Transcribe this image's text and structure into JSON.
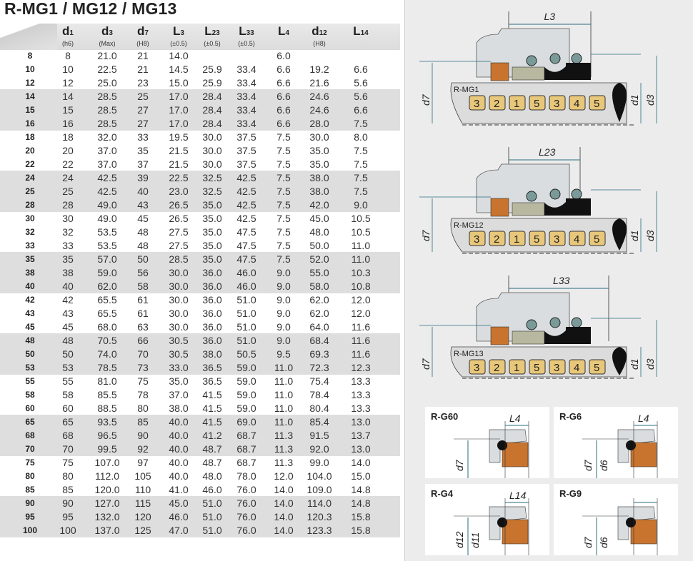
{
  "title": "R-MG1 / MG12 / MG13",
  "columns": [
    {
      "main": "d",
      "sub": "1",
      "tol": "(h6)"
    },
    {
      "main": "d",
      "sub": "3",
      "tol": "(Max)"
    },
    {
      "main": "d",
      "sub": "7",
      "tol": "(H8)"
    },
    {
      "main": "L",
      "sub": "3",
      "tol": "(±0.5)"
    },
    {
      "main": "L",
      "sub": "23",
      "tol": "(±0.5)"
    },
    {
      "main": "L",
      "sub": "33",
      "tol": "(±0.5)"
    },
    {
      "main": "L",
      "sub": "4",
      "tol": ""
    },
    {
      "main": "d",
      "sub": "12",
      "tol": "(H8)"
    },
    {
      "main": "L",
      "sub": "14",
      "tol": ""
    }
  ],
  "rows": [
    [
      "8",
      "8",
      "21.0",
      "21",
      "14.0",
      "",
      "",
      "6.0",
      "",
      ""
    ],
    [
      "10",
      "10",
      "22.5",
      "21",
      "14.5",
      "25.9",
      "33.4",
      "6.6",
      "19.2",
      "6.6"
    ],
    [
      "12",
      "12",
      "25.0",
      "23",
      "15.0",
      "25.9",
      "33.4",
      "6.6",
      "21.6",
      "5.6"
    ],
    [
      "14",
      "14",
      "28.5",
      "25",
      "17.0",
      "28.4",
      "33.4",
      "6.6",
      "24.6",
      "5.6"
    ],
    [
      "15",
      "15",
      "28.5",
      "27",
      "17.0",
      "28.4",
      "33.4",
      "6.6",
      "24.6",
      "6.6"
    ],
    [
      "16",
      "16",
      "28.5",
      "27",
      "17.0",
      "28.4",
      "33.4",
      "6.6",
      "28.0",
      "7.5"
    ],
    [
      "18",
      "18",
      "32.0",
      "33",
      "19.5",
      "30.0",
      "37.5",
      "7.5",
      "30.0",
      "8.0"
    ],
    [
      "20",
      "20",
      "37.0",
      "35",
      "21.5",
      "30.0",
      "37.5",
      "7.5",
      "35.0",
      "7.5"
    ],
    [
      "22",
      "22",
      "37.0",
      "37",
      "21.5",
      "30.0",
      "37.5",
      "7.5",
      "35.0",
      "7.5"
    ],
    [
      "24",
      "24",
      "42.5",
      "39",
      "22.5",
      "32.5",
      "42.5",
      "7.5",
      "38.0",
      "7.5"
    ],
    [
      "25",
      "25",
      "42.5",
      "40",
      "23.0",
      "32.5",
      "42.5",
      "7.5",
      "38.0",
      "7.5"
    ],
    [
      "28",
      "28",
      "49.0",
      "43",
      "26.5",
      "35.0",
      "42.5",
      "7.5",
      "42.0",
      "9.0"
    ],
    [
      "30",
      "30",
      "49.0",
      "45",
      "26.5",
      "35.0",
      "42.5",
      "7.5",
      "45.0",
      "10.5"
    ],
    [
      "32",
      "32",
      "53.5",
      "48",
      "27.5",
      "35.0",
      "47.5",
      "7.5",
      "48.0",
      "10.5"
    ],
    [
      "33",
      "33",
      "53.5",
      "48",
      "27.5",
      "35.0",
      "47.5",
      "7.5",
      "50.0",
      "11.0"
    ],
    [
      "35",
      "35",
      "57.0",
      "50",
      "28.5",
      "35.0",
      "47.5",
      "7.5",
      "52.0",
      "11.0"
    ],
    [
      "38",
      "38",
      "59.0",
      "56",
      "30.0",
      "36.0",
      "46.0",
      "9.0",
      "55.0",
      "10.3"
    ],
    [
      "40",
      "40",
      "62.0",
      "58",
      "30.0",
      "36.0",
      "46.0",
      "9.0",
      "58.0",
      "10.8"
    ],
    [
      "42",
      "42",
      "65.5",
      "61",
      "30.0",
      "36.0",
      "51.0",
      "9.0",
      "62.0",
      "12.0"
    ],
    [
      "43",
      "43",
      "65.5",
      "61",
      "30.0",
      "36.0",
      "51.0",
      "9.0",
      "62.0",
      "12.0"
    ],
    [
      "45",
      "45",
      "68.0",
      "63",
      "30.0",
      "36.0",
      "51.0",
      "9.0",
      "64.0",
      "11.6"
    ],
    [
      "48",
      "48",
      "70.5",
      "66",
      "30.5",
      "36.0",
      "51.0",
      "9.0",
      "68.4",
      "11.6"
    ],
    [
      "50",
      "50",
      "74.0",
      "70",
      "30.5",
      "38.0",
      "50.5",
      "9.5",
      "69.3",
      "11.6"
    ],
    [
      "53",
      "53",
      "78.5",
      "73",
      "33.0",
      "36.5",
      "59.0",
      "11.0",
      "72.3",
      "12.3"
    ],
    [
      "55",
      "55",
      "81.0",
      "75",
      "35.0",
      "36.5",
      "59.0",
      "11.0",
      "75.4",
      "13.3"
    ],
    [
      "58",
      "58",
      "85.5",
      "78",
      "37.0",
      "41.5",
      "59.0",
      "11.0",
      "78.4",
      "13.3"
    ],
    [
      "60",
      "60",
      "88.5",
      "80",
      "38.0",
      "41.5",
      "59.0",
      "11.0",
      "80.4",
      "13.3"
    ],
    [
      "65",
      "65",
      "93.5",
      "85",
      "40.0",
      "41.5",
      "69.0",
      "11.0",
      "85.4",
      "13.0"
    ],
    [
      "68",
      "68",
      "96.5",
      "90",
      "40.0",
      "41.2",
      "68.7",
      "11.3",
      "91.5",
      "13.7"
    ],
    [
      "70",
      "70",
      "99.5",
      "92",
      "40.0",
      "48.7",
      "68.7",
      "11.3",
      "92.0",
      "13.0"
    ],
    [
      "75",
      "75",
      "107.0",
      "97",
      "40.0",
      "48.7",
      "68.7",
      "11.3",
      "99.0",
      "14.0"
    ],
    [
      "80",
      "80",
      "112.0",
      "105",
      "40.0",
      "48.0",
      "78.0",
      "12.0",
      "104.0",
      "15.0"
    ],
    [
      "85",
      "85",
      "120.0",
      "110",
      "41.0",
      "46.0",
      "76.0",
      "14.0",
      "109.0",
      "14.8"
    ],
    [
      "90",
      "90",
      "127.0",
      "115",
      "45.0",
      "51.0",
      "76.0",
      "14.0",
      "114.0",
      "14.8"
    ],
    [
      "95",
      "95",
      "132.0",
      "120",
      "46.0",
      "51.0",
      "76.0",
      "14.0",
      "120.3",
      "15.8"
    ],
    [
      "100",
      "100",
      "137.0",
      "125",
      "47.0",
      "51.0",
      "76.0",
      "14.0",
      "123.3",
      "15.8"
    ]
  ],
  "diagrams": [
    {
      "model": "R-MG1",
      "length": "L3",
      "d_left": "d7",
      "d_right1": "d1",
      "d_right2": "d3",
      "parts": [
        "3",
        "2",
        "1",
        "5",
        "3",
        "4",
        "5"
      ]
    },
    {
      "model": "R-MG12",
      "length": "L23",
      "d_left": "d7",
      "d_right1": "d1",
      "d_right2": "d3",
      "parts": [
        "3",
        "2",
        "1",
        "5",
        "3",
        "4",
        "5"
      ]
    },
    {
      "model": "R-MG13",
      "length": "L33",
      "d_left": "d7",
      "d_right1": "d1",
      "d_right2": "d3",
      "parts": [
        "3",
        "2",
        "1",
        "5",
        "3",
        "4",
        "5"
      ]
    }
  ],
  "seats": [
    {
      "name": "R-G60",
      "dims": [
        "L4",
        "d7"
      ]
    },
    {
      "name": "R-G6",
      "dims": [
        "L4",
        "d7",
        "d6"
      ]
    },
    {
      "name": "R-G4",
      "dims": [
        "L14",
        "d12",
        "d11"
      ]
    },
    {
      "name": "R-G9",
      "dims": [
        "d7",
        "d6"
      ]
    }
  ],
  "colors": {
    "band": "#dedede",
    "panel_bg": "#ececec",
    "badge": "#e8c77a",
    "seat": "#c8742e",
    "elastomer": "#111111",
    "metal": "#d9dde0"
  }
}
